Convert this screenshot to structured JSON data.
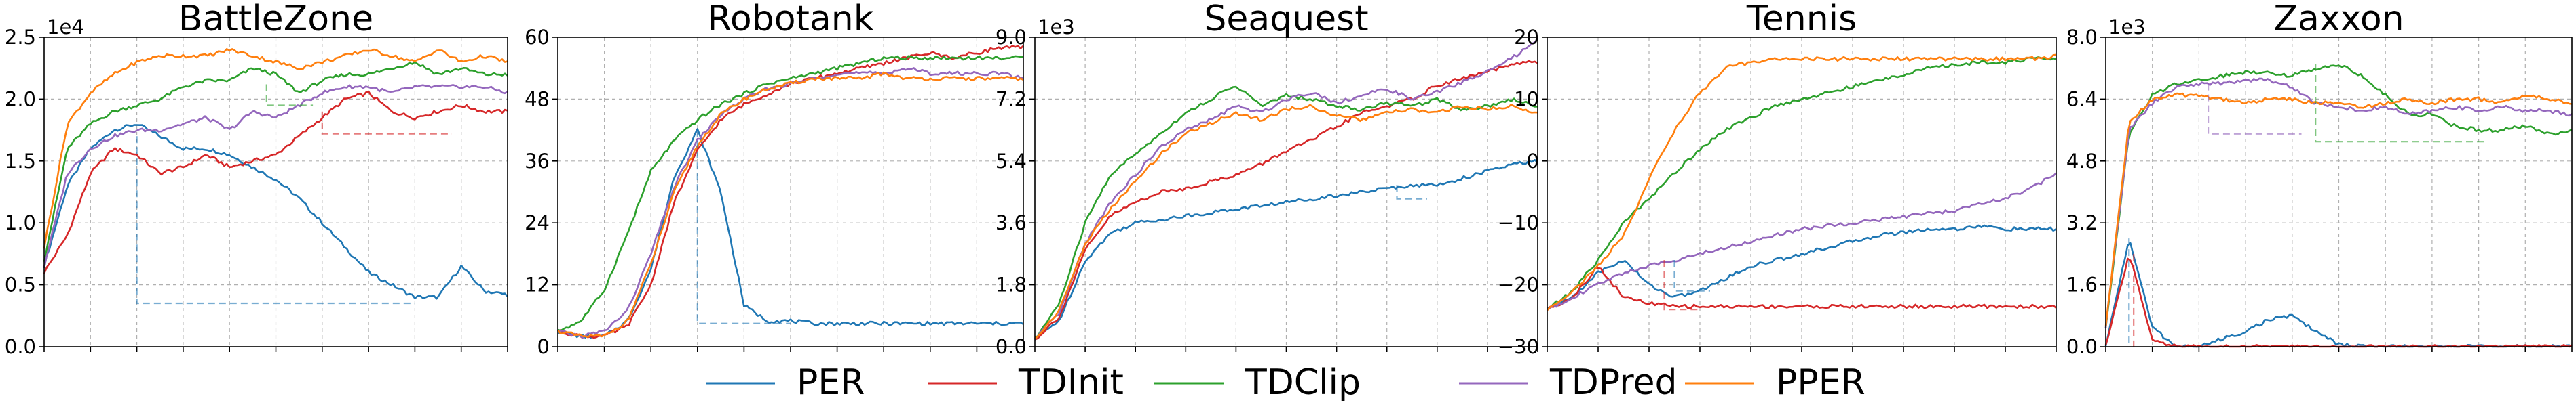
{
  "colors": {
    "PER": "#1f77b4",
    "TDInit": "#d62728",
    "TDClip": "#2ca02c",
    "TDPred": "#9467bd",
    "PPER": "#ff7f0e"
  },
  "legend": {
    "placement": "bottom-center",
    "entries": [
      "PER",
      "TDInit",
      "TDClip",
      "TDPred",
      "PPER"
    ]
  },
  "chart_data": [
    {
      "type": "line",
      "title": "BattleZone",
      "multiplier": "1e4",
      "ylim": [
        0,
        2.5
      ],
      "yticks": [
        "0.0",
        "0.5",
        "1.0",
        "1.5",
        "2.0",
        "2.5"
      ],
      "grid": true,
      "x": [
        0,
        0.05,
        0.1,
        0.15,
        0.2,
        0.25,
        0.3,
        0.35,
        0.4,
        0.45,
        0.5,
        0.55,
        0.6,
        0.65,
        0.7,
        0.75,
        0.8,
        0.85,
        0.9,
        0.95,
        1
      ],
      "series": [
        {
          "name": "PER",
          "values": [
            0.65,
            1.3,
            1.6,
            1.75,
            1.8,
            1.7,
            1.6,
            1.6,
            1.55,
            1.45,
            1.35,
            1.2,
            1.0,
            0.8,
            0.6,
            0.5,
            0.4,
            0.4,
            0.65,
            0.45,
            0.42
          ]
        },
        {
          "name": "TDInit",
          "values": [
            0.6,
            0.9,
            1.4,
            1.6,
            1.55,
            1.4,
            1.45,
            1.55,
            1.45,
            1.5,
            1.55,
            1.7,
            1.85,
            2.0,
            2.05,
            1.9,
            1.85,
            1.9,
            1.95,
            1.9,
            1.9
          ]
        },
        {
          "name": "TDClip",
          "values": [
            0.7,
            1.6,
            1.8,
            1.9,
            1.95,
            2.0,
            2.1,
            2.15,
            2.15,
            2.25,
            2.2,
            2.05,
            2.15,
            2.2,
            2.2,
            2.25,
            2.3,
            2.2,
            2.25,
            2.2,
            2.2
          ]
        },
        {
          "name": "TDPred",
          "values": [
            0.65,
            1.4,
            1.6,
            1.7,
            1.75,
            1.75,
            1.8,
            1.85,
            1.75,
            1.9,
            1.85,
            1.95,
            2.05,
            2.1,
            2.1,
            2.05,
            2.1,
            2.1,
            2.1,
            2.1,
            2.05
          ]
        },
        {
          "name": "PPER",
          "values": [
            0.8,
            1.8,
            2.05,
            2.2,
            2.3,
            2.35,
            2.35,
            2.35,
            2.4,
            2.35,
            2.3,
            2.25,
            2.3,
            2.35,
            2.4,
            2.35,
            2.3,
            2.4,
            2.3,
            2.35,
            2.3
          ]
        }
      ],
      "dashed_segments": [
        {
          "series": "PER",
          "points": [
            [
              0.2,
              1.7
            ],
            [
              0.2,
              0.35
            ],
            [
              0.8,
              0.35
            ]
          ]
        },
        {
          "series": "TDInit",
          "points": [
            [
              0.6,
              1.9
            ],
            [
              0.6,
              1.72
            ],
            [
              0.88,
              1.72
            ]
          ]
        },
        {
          "series": "TDClip",
          "points": [
            [
              0.48,
              2.12
            ],
            [
              0.48,
              1.95
            ],
            [
              0.58,
              1.95
            ]
          ]
        }
      ]
    },
    {
      "type": "line",
      "title": "Robotank",
      "multiplier": "",
      "ylim": [
        0,
        60
      ],
      "yticks": [
        "0",
        "12",
        "24",
        "36",
        "48",
        "60"
      ],
      "grid": true,
      "x": [
        0,
        0.05,
        0.1,
        0.15,
        0.2,
        0.25,
        0.3,
        0.35,
        0.4,
        0.45,
        0.5,
        0.55,
        0.6,
        0.65,
        0.7,
        0.75,
        0.8,
        0.85,
        0.9,
        0.95,
        1
      ],
      "series": [
        {
          "name": "PER",
          "values": [
            3,
            2,
            2,
            5,
            15,
            33,
            42,
            30,
            8,
            5,
            5,
            4.5,
            4.5,
            4.5,
            4.5,
            4.5,
            4.5,
            4.5,
            4.5,
            4.5,
            4.5
          ]
        },
        {
          "name": "TDInit",
          "values": [
            3,
            2,
            2,
            4,
            12,
            28,
            38,
            44,
            47,
            49,
            51,
            52,
            53,
            54,
            55,
            56,
            57,
            56,
            57,
            58,
            58
          ]
        },
        {
          "name": "TDClip",
          "values": [
            3,
            5,
            11,
            22,
            34,
            40,
            44,
            47,
            49,
            51,
            52,
            53,
            54,
            55,
            56,
            56,
            56,
            56,
            56,
            56,
            56
          ]
        },
        {
          "name": "TDPred",
          "values": [
            3,
            2,
            3,
            7,
            18,
            31,
            40,
            45,
            48,
            50,
            51,
            52,
            53,
            53,
            53,
            54,
            53,
            53,
            53,
            53,
            52
          ]
        },
        {
          "name": "PPER",
          "values": [
            3,
            2,
            2,
            5,
            16,
            30,
            39,
            45,
            48,
            50,
            51,
            52,
            52,
            52,
            53,
            52,
            52,
            52,
            52,
            52,
            52
          ]
        }
      ],
      "dashed_segments": [
        {
          "series": "PER",
          "points": [
            [
              0.3,
              42
            ],
            [
              0.3,
              4.5
            ],
            [
              0.5,
              4.5
            ]
          ]
        }
      ]
    },
    {
      "type": "line",
      "title": "Seaquest",
      "multiplier": "1e3",
      "ylim": [
        0,
        9
      ],
      "yticks": [
        "0.0",
        "1.8",
        "3.6",
        "5.4",
        "7.2",
        "9.0"
      ],
      "grid": true,
      "x": [
        0,
        0.05,
        0.1,
        0.15,
        0.2,
        0.25,
        0.3,
        0.35,
        0.4,
        0.45,
        0.5,
        0.55,
        0.6,
        0.65,
        0.7,
        0.75,
        0.8,
        0.85,
        0.9,
        0.95,
        1
      ],
      "series": [
        {
          "name": "PER",
          "values": [
            0.2,
            0.8,
            2.5,
            3.3,
            3.6,
            3.7,
            3.8,
            3.9,
            4.0,
            4.1,
            4.2,
            4.3,
            4.4,
            4.5,
            4.6,
            4.7,
            4.7,
            4.9,
            5.1,
            5.3,
            5.4
          ]
        },
        {
          "name": "TDInit",
          "values": [
            0.2,
            0.9,
            2.8,
            3.8,
            4.2,
            4.5,
            4.6,
            4.8,
            5.0,
            5.3,
            5.7,
            6.0,
            6.4,
            6.8,
            7.0,
            7.2,
            7.6,
            7.8,
            8.0,
            8.2,
            8.3
          ]
        },
        {
          "name": "TDClip",
          "values": [
            0.2,
            1.3,
            3.6,
            5.0,
            5.6,
            6.2,
            6.8,
            7.2,
            7.6,
            7.0,
            7.3,
            7.2,
            7.0,
            6.9,
            7.1,
            7.0,
            7.2,
            6.9,
            7.0,
            7.2,
            7.0
          ]
        },
        {
          "name": "TDPred",
          "values": [
            0.2,
            1.0,
            3.0,
            4.2,
            5.0,
            5.8,
            6.3,
            6.6,
            7.0,
            6.8,
            7.2,
            7.4,
            7.1,
            7.3,
            7.5,
            7.2,
            7.4,
            7.7,
            8.0,
            8.4,
            8.9
          ]
        },
        {
          "name": "PPER",
          "values": [
            0.2,
            1.1,
            3.0,
            4.0,
            4.8,
            5.6,
            6.2,
            6.5,
            6.8,
            6.6,
            6.9,
            7.0,
            6.7,
            6.6,
            6.8,
            6.9,
            6.8,
            7.0,
            6.9,
            7.0,
            6.8
          ]
        }
      ],
      "dashed_segments": [
        {
          "series": "PER",
          "points": [
            [
              0.72,
              4.7
            ],
            [
              0.72,
              4.3
            ],
            [
              0.78,
              4.3
            ]
          ]
        }
      ]
    },
    {
      "type": "line",
      "title": "Tennis",
      "multiplier": "",
      "ylim": [
        -30,
        20
      ],
      "yticks": [
        "−30",
        "−20",
        "−10",
        "0",
        "10",
        "20"
      ],
      "grid": true,
      "x": [
        0,
        0.05,
        0.1,
        0.15,
        0.2,
        0.25,
        0.3,
        0.35,
        0.4,
        0.45,
        0.5,
        0.55,
        0.6,
        0.65,
        0.7,
        0.75,
        0.8,
        0.85,
        0.9,
        0.95,
        1
      ],
      "series": [
        {
          "name": "PER",
          "values": [
            -24,
            -22,
            -18,
            -16,
            -20,
            -22,
            -21,
            -19,
            -17,
            -16,
            -15,
            -14,
            -13,
            -12,
            -11.5,
            -11,
            -11,
            -10.5,
            -11,
            -11,
            -11
          ]
        },
        {
          "name": "TDInit",
          "values": [
            -24,
            -22,
            -17,
            -22,
            -23,
            -23.5,
            -23.5,
            -23.5,
            -23.5,
            -23.5,
            -23.5,
            -23.5,
            -23.5,
            -23.5,
            -23.5,
            -23.5,
            -23.5,
            -23.5,
            -23.5,
            -23.5,
            -23.5
          ]
        },
        {
          "name": "TDClip",
          "values": [
            -24,
            -21,
            -16,
            -10,
            -6,
            -2,
            2,
            5,
            7,
            9,
            10,
            11,
            12,
            13,
            14,
            15,
            15.5,
            16,
            16,
            16.5,
            16.5
          ]
        },
        {
          "name": "TDPred",
          "values": [
            -24,
            -22,
            -20,
            -18,
            -17,
            -16,
            -15,
            -14,
            -13,
            -12,
            -11,
            -10.5,
            -10,
            -9.5,
            -9,
            -8.5,
            -8,
            -7,
            -6,
            -4.5,
            -2
          ]
        },
        {
          "name": "PPER",
          "values": [
            -24,
            -21,
            -17,
            -12,
            -3,
            5,
            11,
            15,
            16,
            16.5,
            16.5,
            16.5,
            16.5,
            16.5,
            16.5,
            16.5,
            16.5,
            16.5,
            16.5,
            16.5,
            17
          ]
        }
      ],
      "dashed_segments": [
        {
          "series": "TDInit",
          "points": [
            [
              0.23,
              -16
            ],
            [
              0.23,
              -24
            ],
            [
              0.3,
              -24
            ]
          ]
        },
        {
          "series": "PER",
          "points": [
            [
              0.25,
              -16
            ],
            [
              0.25,
              -21
            ],
            [
              0.32,
              -21
            ]
          ]
        },
        {
          "series": "TDClip",
          "points": [
            [
              0.9,
              16
            ],
            [
              0.9,
              15.5
            ]
          ]
        }
      ]
    },
    {
      "type": "line",
      "title": "Zaxxon",
      "multiplier": "1e3",
      "ylim": [
        0,
        8
      ],
      "yticks": [
        "0.0",
        "1.6",
        "3.2",
        "4.8",
        "6.4",
        "8.0"
      ],
      "grid": true,
      "x": [
        0,
        0.05,
        0.1,
        0.15,
        0.2,
        0.25,
        0.3,
        0.35,
        0.4,
        0.45,
        0.5,
        0.55,
        0.6,
        0.65,
        0.7,
        0.75,
        0.8,
        0.85,
        0.9,
        0.95,
        1
      ],
      "series": [
        {
          "name": "PER",
          "values": [
            0,
            2.8,
            0.5,
            0,
            0,
            0.2,
            0.4,
            0.7,
            0.8,
            0.4,
            0.05,
            0,
            0,
            0,
            0,
            0,
            0,
            0,
            0,
            0,
            0
          ]
        },
        {
          "name": "TDInit",
          "values": [
            0,
            2.4,
            0.2,
            0,
            0,
            0,
            0,
            0,
            0,
            0,
            0,
            0,
            0,
            0,
            0,
            0,
            0,
            0,
            0,
            0,
            0
          ]
        },
        {
          "name": "TDClip",
          "values": [
            0.5,
            5.5,
            6.5,
            6.8,
            6.9,
            7.0,
            7.1,
            7.1,
            7.0,
            7.2,
            7.3,
            7.0,
            6.5,
            6.0,
            6.0,
            5.7,
            5.6,
            5.6,
            5.7,
            5.5,
            5.6
          ]
        },
        {
          "name": "TDPred",
          "values": [
            0.5,
            5.6,
            6.3,
            6.7,
            6.8,
            6.8,
            6.9,
            6.9,
            6.7,
            6.3,
            6.2,
            6.1,
            6.2,
            6.0,
            6.1,
            6.2,
            6.1,
            6.2,
            6.1,
            6.1,
            6.0
          ]
        },
        {
          "name": "PPER",
          "values": [
            0.5,
            5.8,
            6.4,
            6.5,
            6.5,
            6.4,
            6.3,
            6.4,
            6.4,
            6.3,
            6.3,
            6.2,
            6.3,
            6.4,
            6.3,
            6.4,
            6.4,
            6.3,
            6.5,
            6.4,
            6.3
          ]
        }
      ],
      "dashed_segments": [
        {
          "series": "PER",
          "points": [
            [
              0.05,
              2.8
            ],
            [
              0.05,
              0
            ]
          ]
        },
        {
          "series": "TDInit",
          "points": [
            [
              0.06,
              2.4
            ],
            [
              0.06,
              0
            ]
          ]
        },
        {
          "series": "TDPred",
          "points": [
            [
              0.22,
              6.8
            ],
            [
              0.22,
              5.5
            ],
            [
              0.42,
              5.5
            ]
          ]
        },
        {
          "series": "TDClip",
          "points": [
            [
              0.45,
              7.3
            ],
            [
              0.45,
              5.3
            ],
            [
              0.82,
              5.3
            ]
          ]
        }
      ]
    }
  ]
}
